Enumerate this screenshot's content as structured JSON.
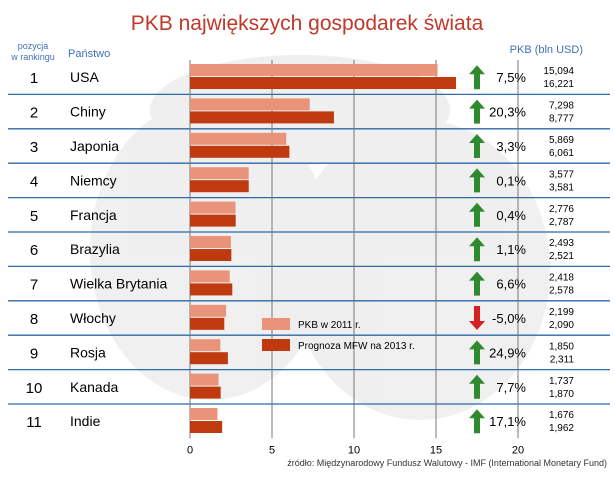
{
  "chart_data": {
    "type": "bar",
    "title": "PKB największych gospodarek świata",
    "rank_header": "pozycja w rankingu",
    "country_header": "Państwo",
    "value_header": "PKB (bln USD)",
    "source": "źródło: Międzynarodowy Fundusz Walutowy - IMF (International Monetary Fund)",
    "xlim": [
      0,
      20
    ],
    "x_ticks": [
      "0",
      "5",
      "10",
      "15",
      "20"
    ],
    "grid": true,
    "legend_placement": "right",
    "colors": {
      "2011": "#e8937a",
      "2013": "#c03a10",
      "up": "#2f8a2f",
      "down": "#d42020"
    },
    "series": [
      {
        "name": "PKB w 2011 r.",
        "values": [
          15.094,
          7.298,
          5.869,
          3.577,
          2.776,
          2.493,
          2.418,
          2.199,
          1.85,
          1.737,
          1.676
        ]
      },
      {
        "name": "Prognoza MFW na 2013 r.",
        "values": [
          16.221,
          8.777,
          6.061,
          3.581,
          2.787,
          2.521,
          2.578,
          2.09,
          2.311,
          1.87,
          1.962
        ]
      }
    ],
    "rows": [
      {
        "rank": "1",
        "country": "USA",
        "change": "7,5%",
        "trend": "up",
        "v2011": "15,094",
        "v2013": "16,221"
      },
      {
        "rank": "2",
        "country": "Chiny",
        "change": "20,3%",
        "trend": "up",
        "v2011": "7,298",
        "v2013": "8,777"
      },
      {
        "rank": "3",
        "country": "Japonia",
        "change": "3,3%",
        "trend": "up",
        "v2011": "5,869",
        "v2013": "6,061"
      },
      {
        "rank": "4",
        "country": "Niemcy",
        "change": "0,1%",
        "trend": "up",
        "v2011": "3,577",
        "v2013": "3,581"
      },
      {
        "rank": "5",
        "country": "Francja",
        "change": "0,4%",
        "trend": "up",
        "v2011": "2,776",
        "v2013": "2,787"
      },
      {
        "rank": "6",
        "country": "Brazylia",
        "change": "1,1%",
        "trend": "up",
        "v2011": "2,493",
        "v2013": "2,521"
      },
      {
        "rank": "7",
        "country": "Wielka Brytania",
        "change": "6,6%",
        "trend": "up",
        "v2011": "2,418",
        "v2013": "2,578"
      },
      {
        "rank": "8",
        "country": "Włochy",
        "change": "-5,0%",
        "trend": "down",
        "v2011": "2,199",
        "v2013": "2,090"
      },
      {
        "rank": "9",
        "country": "Rosja",
        "change": "24,9%",
        "trend": "up",
        "v2011": "1,850",
        "v2013": "2,311"
      },
      {
        "rank": "10",
        "country": "Kanada",
        "change": "7,7%",
        "trend": "up",
        "v2011": "1,737",
        "v2013": "1,870"
      },
      {
        "rank": "11",
        "country": "Indie",
        "change": "17,1%",
        "trend": "up",
        "v2011": "1,676",
        "v2013": "1,962"
      }
    ]
  }
}
